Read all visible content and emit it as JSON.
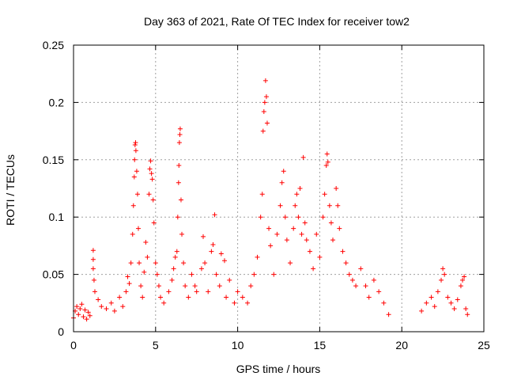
{
  "chart_data": {
    "type": "scatter",
    "title": "Day 363 of 2021, Rate Of TEC Index for receiver tow2",
    "xlabel": "GPS time / hours",
    "ylabel": "ROTI / TECUs",
    "xlim": [
      0,
      25
    ],
    "ylim": [
      0,
      0.25
    ],
    "xticks": [
      "0",
      "5",
      "10",
      "15",
      "20",
      "25"
    ],
    "yticks": [
      "0",
      "0.05",
      "0.1",
      "0.15",
      "0.2",
      "0.25"
    ],
    "grid": true,
    "marker": "+",
    "color": "#ff0000",
    "series": [
      {
        "points": [
          [
            0.0,
            0.012
          ],
          [
            0.1,
            0.018
          ],
          [
            0.2,
            0.022
          ],
          [
            0.3,
            0.015
          ],
          [
            0.4,
            0.02
          ],
          [
            0.5,
            0.024
          ],
          [
            0.6,
            0.013
          ],
          [
            0.7,
            0.019
          ],
          [
            0.8,
            0.011
          ],
          [
            0.9,
            0.017
          ],
          [
            1.0,
            0.014
          ],
          [
            1.2,
            0.071
          ],
          [
            1.2,
            0.063
          ],
          [
            1.2,
            0.055
          ],
          [
            1.25,
            0.045
          ],
          [
            1.3,
            0.035
          ],
          [
            1.5,
            0.028
          ],
          [
            1.7,
            0.022
          ],
          [
            2.0,
            0.02
          ],
          [
            2.3,
            0.025
          ],
          [
            2.5,
            0.018
          ],
          [
            2.8,
            0.03
          ],
          [
            3.0,
            0.022
          ],
          [
            3.2,
            0.035
          ],
          [
            3.3,
            0.048
          ],
          [
            3.4,
            0.042
          ],
          [
            3.5,
            0.06
          ],
          [
            3.6,
            0.085
          ],
          [
            3.65,
            0.11
          ],
          [
            3.7,
            0.135
          ],
          [
            3.72,
            0.15
          ],
          [
            3.75,
            0.163
          ],
          [
            3.78,
            0.165
          ],
          [
            3.8,
            0.158
          ],
          [
            3.85,
            0.14
          ],
          [
            3.9,
            0.12
          ],
          [
            3.95,
            0.09
          ],
          [
            4.0,
            0.06
          ],
          [
            4.1,
            0.04
          ],
          [
            4.2,
            0.03
          ],
          [
            4.3,
            0.052
          ],
          [
            4.4,
            0.078
          ],
          [
            4.5,
            0.065
          ],
          [
            4.6,
            0.12
          ],
          [
            4.65,
            0.142
          ],
          [
            4.7,
            0.149
          ],
          [
            4.75,
            0.138
          ],
          [
            4.8,
            0.133
          ],
          [
            4.85,
            0.115
          ],
          [
            4.9,
            0.095
          ],
          [
            5.0,
            0.06
          ],
          [
            5.1,
            0.05
          ],
          [
            5.2,
            0.04
          ],
          [
            5.3,
            0.03
          ],
          [
            5.5,
            0.025
          ],
          [
            5.8,
            0.035
          ],
          [
            6.0,
            0.045
          ],
          [
            6.1,
            0.055
          ],
          [
            6.2,
            0.065
          ],
          [
            6.3,
            0.07
          ],
          [
            6.35,
            0.1
          ],
          [
            6.4,
            0.13
          ],
          [
            6.42,
            0.145
          ],
          [
            6.45,
            0.165
          ],
          [
            6.48,
            0.172
          ],
          [
            6.5,
            0.177
          ],
          [
            6.55,
            0.115
          ],
          [
            6.6,
            0.085
          ],
          [
            6.7,
            0.06
          ],
          [
            6.8,
            0.04
          ],
          [
            7.0,
            0.03
          ],
          [
            7.2,
            0.05
          ],
          [
            7.4,
            0.04
          ],
          [
            7.5,
            0.035
          ],
          [
            7.8,
            0.055
          ],
          [
            7.9,
            0.083
          ],
          [
            8.0,
            0.06
          ],
          [
            8.2,
            0.035
          ],
          [
            8.4,
            0.07
          ],
          [
            8.5,
            0.076
          ],
          [
            8.6,
            0.102
          ],
          [
            8.7,
            0.05
          ],
          [
            8.9,
            0.04
          ],
          [
            9.0,
            0.068
          ],
          [
            9.2,
            0.062
          ],
          [
            9.3,
            0.03
          ],
          [
            9.5,
            0.045
          ],
          [
            9.8,
            0.025
          ],
          [
            10.0,
            0.035
          ],
          [
            10.3,
            0.03
          ],
          [
            10.6,
            0.025
          ],
          [
            10.8,
            0.04
          ],
          [
            11.0,
            0.05
          ],
          [
            11.2,
            0.065
          ],
          [
            11.4,
            0.1
          ],
          [
            11.5,
            0.12
          ],
          [
            11.55,
            0.175
          ],
          [
            11.6,
            0.192
          ],
          [
            11.65,
            0.2
          ],
          [
            11.7,
            0.219
          ],
          [
            11.75,
            0.205
          ],
          [
            11.8,
            0.182
          ],
          [
            11.9,
            0.09
          ],
          [
            12.0,
            0.075
          ],
          [
            12.2,
            0.05
          ],
          [
            12.4,
            0.085
          ],
          [
            12.6,
            0.11
          ],
          [
            12.7,
            0.13
          ],
          [
            12.8,
            0.14
          ],
          [
            12.9,
            0.1
          ],
          [
            13.0,
            0.08
          ],
          [
            13.2,
            0.06
          ],
          [
            13.4,
            0.09
          ],
          [
            13.5,
            0.11
          ],
          [
            13.6,
            0.12
          ],
          [
            13.7,
            0.1
          ],
          [
            13.8,
            0.125
          ],
          [
            13.9,
            0.085
          ],
          [
            14.0,
            0.152
          ],
          [
            14.1,
            0.095
          ],
          [
            14.2,
            0.08
          ],
          [
            14.4,
            0.07
          ],
          [
            14.6,
            0.055
          ],
          [
            14.8,
            0.085
          ],
          [
            15.0,
            0.065
          ],
          [
            15.2,
            0.1
          ],
          [
            15.3,
            0.12
          ],
          [
            15.4,
            0.145
          ],
          [
            15.45,
            0.155
          ],
          [
            15.5,
            0.148
          ],
          [
            15.6,
            0.11
          ],
          [
            15.7,
            0.095
          ],
          [
            15.8,
            0.08
          ],
          [
            16.0,
            0.125
          ],
          [
            16.1,
            0.11
          ],
          [
            16.2,
            0.09
          ],
          [
            16.4,
            0.07
          ],
          [
            16.6,
            0.06
          ],
          [
            16.8,
            0.05
          ],
          [
            17.0,
            0.045
          ],
          [
            17.2,
            0.04
          ],
          [
            17.5,
            0.055
          ],
          [
            17.8,
            0.04
          ],
          [
            18.0,
            0.03
          ],
          [
            18.3,
            0.045
          ],
          [
            18.6,
            0.035
          ],
          [
            18.9,
            0.025
          ],
          [
            19.2,
            0.015
          ],
          [
            21.2,
            0.018
          ],
          [
            21.5,
            0.025
          ],
          [
            21.8,
            0.03
          ],
          [
            22.0,
            0.022
          ],
          [
            22.2,
            0.035
          ],
          [
            22.4,
            0.045
          ],
          [
            22.5,
            0.055
          ],
          [
            22.6,
            0.05
          ],
          [
            22.8,
            0.03
          ],
          [
            23.0,
            0.025
          ],
          [
            23.2,
            0.02
          ],
          [
            23.4,
            0.028
          ],
          [
            23.6,
            0.04
          ],
          [
            23.7,
            0.045
          ],
          [
            23.8,
            0.048
          ],
          [
            23.9,
            0.02
          ],
          [
            24.0,
            0.015
          ]
        ]
      }
    ]
  }
}
